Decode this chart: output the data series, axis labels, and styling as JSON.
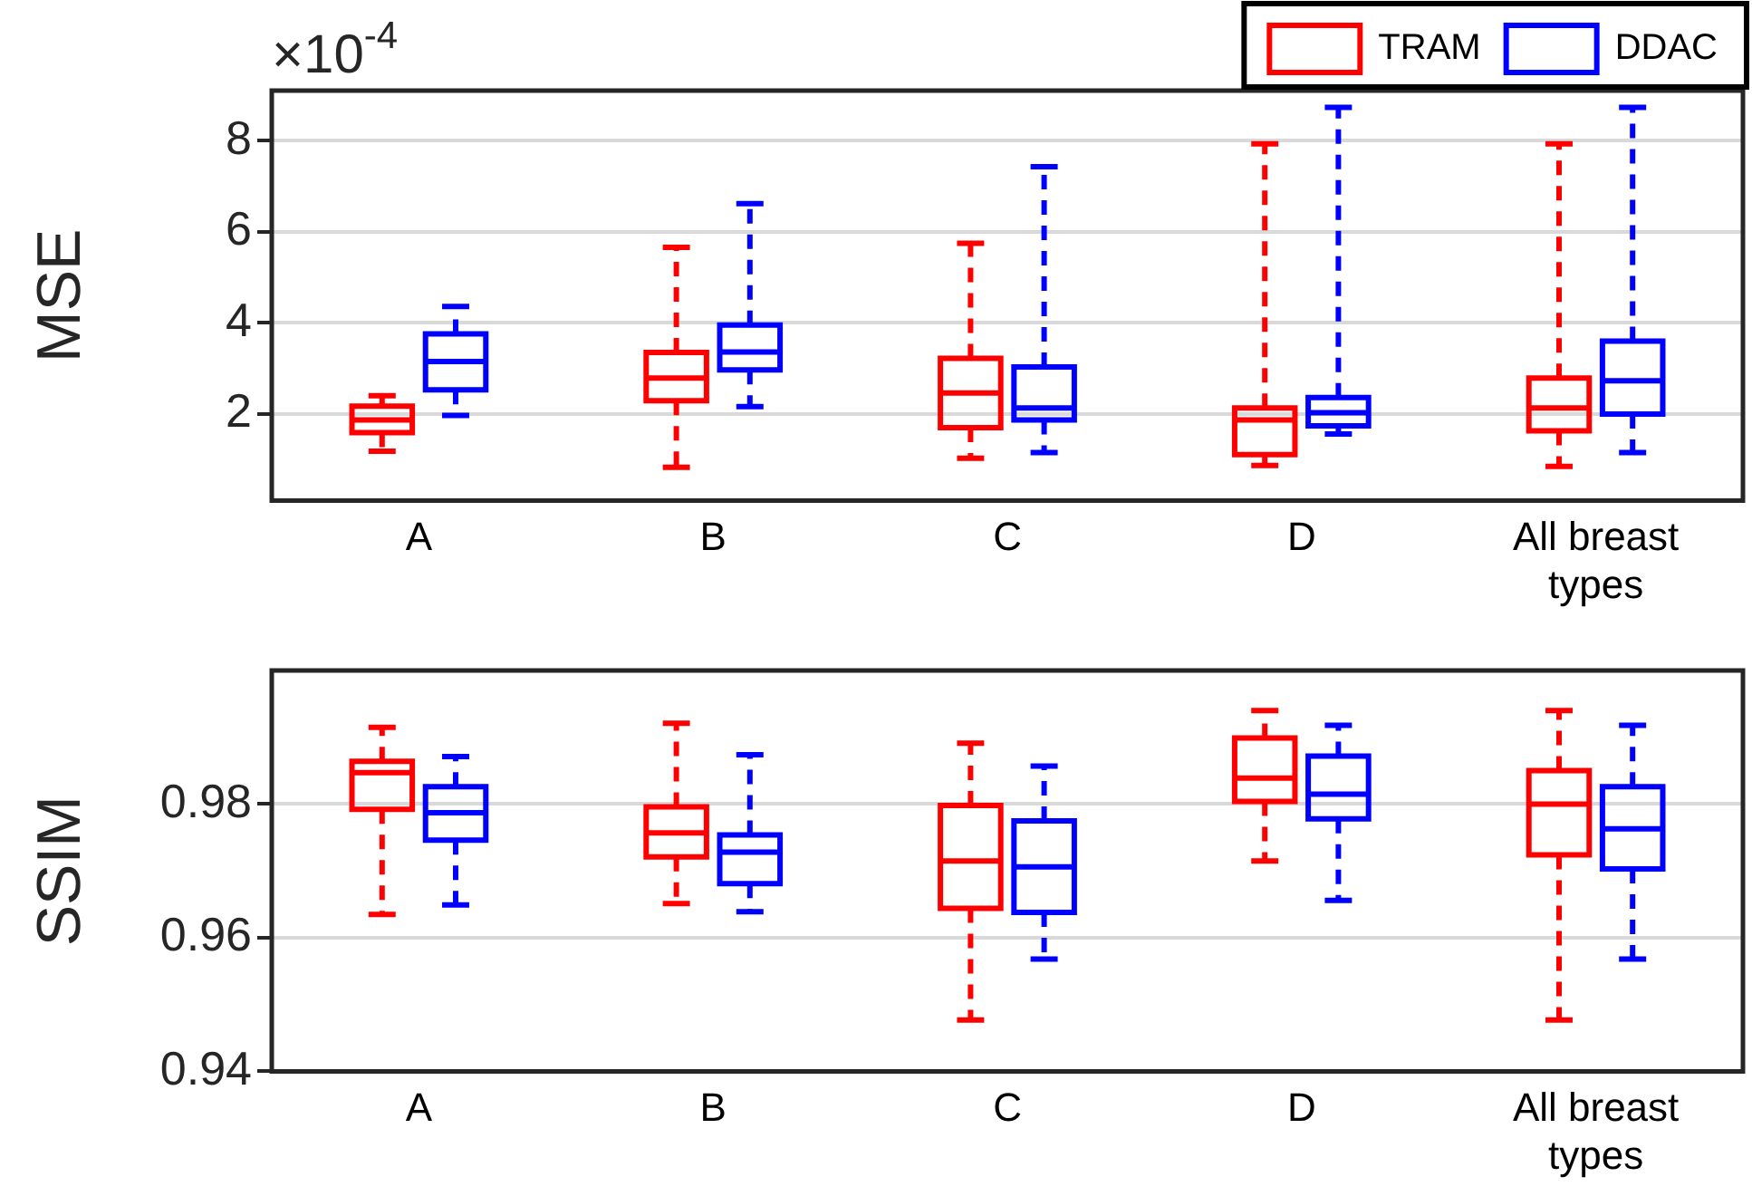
{
  "chart_data": [
    {
      "type": "box",
      "ylabel": "MSE",
      "annotations": [
        "×10$^{-4}$"
      ],
      "categories": [
        "A",
        "B",
        "C",
        "D",
        "All breast types"
      ],
      "ylim": [
        0.1,
        9.1
      ],
      "yticks": [
        2,
        4,
        6,
        8
      ],
      "grid": "y",
      "legend": "top right",
      "series": [
        {
          "name": "TRAM",
          "color": "#ff0000",
          "boxes": [
            {
              "low": 1.18,
              "q1": 1.59,
              "median": 1.87,
              "q3": 2.17,
              "high": 2.4
            },
            {
              "low": 0.83,
              "q1": 2.29,
              "median": 2.79,
              "q3": 3.35,
              "high": 5.66
            },
            {
              "low": 1.03,
              "q1": 1.7,
              "median": 2.46,
              "q3": 3.22,
              "high": 5.75
            },
            {
              "low": 0.87,
              "q1": 1.11,
              "median": 1.87,
              "q3": 2.13,
              "high": 7.93
            },
            {
              "low": 0.85,
              "q1": 1.63,
              "median": 2.13,
              "q3": 2.79,
              "high": 7.93
            }
          ]
        },
        {
          "name": "DDAC",
          "color": "#0000ff",
          "boxes": [
            {
              "low": 1.97,
              "q1": 2.53,
              "median": 3.15,
              "q3": 3.76,
              "high": 4.36
            },
            {
              "low": 2.16,
              "q1": 2.97,
              "median": 3.36,
              "q3": 3.95,
              "high": 6.62
            },
            {
              "low": 1.15,
              "q1": 1.87,
              "median": 2.13,
              "q3": 3.03,
              "high": 7.43
            },
            {
              "low": 1.56,
              "q1": 1.74,
              "median": 2.03,
              "q3": 2.36,
              "high": 8.73
            },
            {
              "low": 1.15,
              "q1": 2.0,
              "median": 2.73,
              "q3": 3.6,
              "high": 8.73
            }
          ]
        }
      ]
    },
    {
      "type": "box",
      "ylabel": "SSIM",
      "categories": [
        "A",
        "B",
        "C",
        "D",
        "All breast types"
      ],
      "ylim": [
        0.94,
        1.0
      ],
      "yticks": [
        0.94,
        0.96,
        0.98
      ],
      "grid": "y",
      "series": [
        {
          "color": "#ff0000",
          "boxes": [
            {
              "low": 0.9635,
              "q1": 0.9792,
              "median": 0.9847,
              "q3": 0.9864,
              "high": 0.9915
            },
            {
              "low": 0.9651,
              "q1": 0.9721,
              "median": 0.9757,
              "q3": 0.9796,
              "high": 0.9921
            },
            {
              "low": 0.9477,
              "q1": 0.9644,
              "median": 0.9715,
              "q3": 0.9798,
              "high": 0.9891
            },
            {
              "low": 0.9715,
              "q1": 0.9804,
              "median": 0.9839,
              "q3": 0.9899,
              "high": 0.994
            },
            {
              "low": 0.9477,
              "q1": 0.9724,
              "median": 0.98,
              "q3": 0.985,
              "high": 0.994
            }
          ]
        },
        {
          "color": "#0000ff",
          "boxes": [
            {
              "low": 0.9649,
              "q1": 0.9746,
              "median": 0.9787,
              "q3": 0.9826,
              "high": 0.9871
            },
            {
              "low": 0.9639,
              "q1": 0.9681,
              "median": 0.9728,
              "q3": 0.9754,
              "high": 0.9874
            },
            {
              "low": 0.9568,
              "q1": 0.9638,
              "median": 0.9706,
              "q3": 0.9775,
              "high": 0.9857
            },
            {
              "low": 0.9656,
              "q1": 0.9778,
              "median": 0.9815,
              "q3": 0.9872,
              "high": 0.9918
            },
            {
              "low": 0.9568,
              "q1": 0.9703,
              "median": 0.9763,
              "q3": 0.9826,
              "high": 0.9918
            }
          ]
        }
      ]
    }
  ]
}
